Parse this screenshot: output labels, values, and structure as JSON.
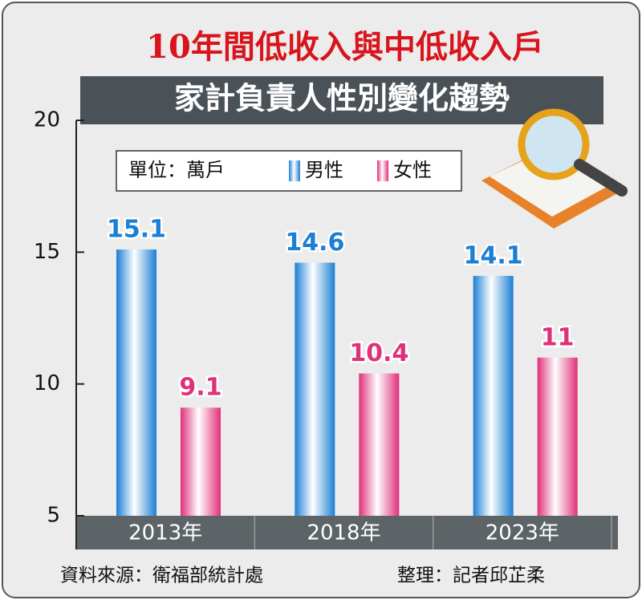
{
  "chart_data": {
    "type": "bar",
    "title": "10年間低收入與中低收入戶",
    "subtitle": "家計負責人性別變化趨勢",
    "unit_label": "單位：萬戶",
    "categories": [
      "2013年",
      "2018年",
      "2023年"
    ],
    "series": [
      {
        "name": "男性",
        "color": "#1b7fd4",
        "values": [
          15.1,
          14.6,
          14.1
        ]
      },
      {
        "name": "女性",
        "color": "#e0307a",
        "values": [
          9.1,
          10.4,
          11
        ]
      }
    ],
    "ylim": [
      5,
      20
    ],
    "yticks": [
      5,
      10,
      15,
      20
    ],
    "source": "資料來源：衛福部統計處",
    "credit": "整理：記者邱芷柔"
  }
}
